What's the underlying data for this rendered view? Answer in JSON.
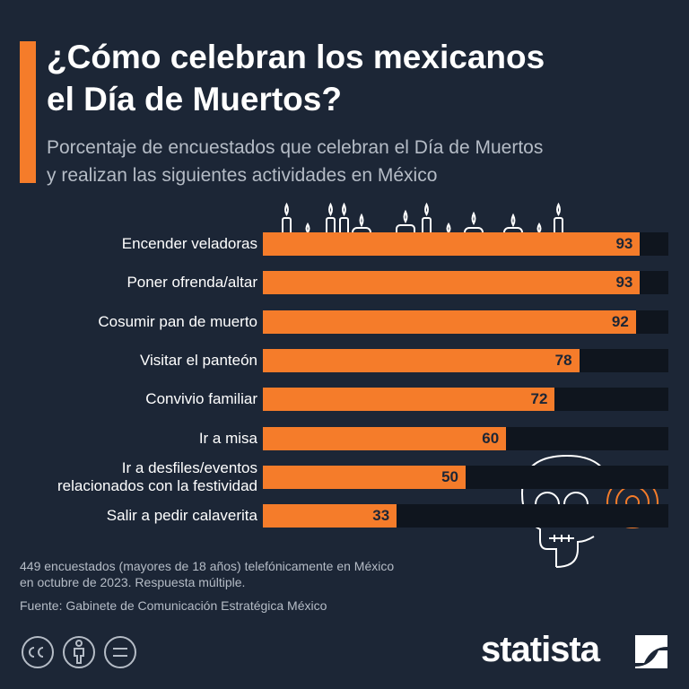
{
  "chart_data": {
    "type": "bar",
    "title": "¿Cómo celebran los mexicanos\nel Día de Muertos?",
    "subtitle": "Porcentaje de encuestados que celebran el Día de Muertos\ny realizan las siguientes actividades en México",
    "categories": [
      "Encender veladoras",
      "Poner ofrenda/altar",
      "Cosumir pan de muerto",
      "Visitar el panteón",
      "Convivio familiar",
      "Ir a misa",
      "Ir a desfiles/eventos\nrelacionados con la festividad",
      "Salir a pedir calaverita"
    ],
    "values": [
      93,
      93,
      92,
      78,
      72,
      60,
      50,
      33
    ],
    "color": "#f57c2a",
    "xlim": [
      0,
      100
    ],
    "note": "449 encuestados (mayores de 18 años) telefónicamente en México\nen octubre de 2023. Respuesta múltiple.",
    "source": "Fuente: Gabinete de Comunicación Estratégica México",
    "brand": "statista"
  }
}
